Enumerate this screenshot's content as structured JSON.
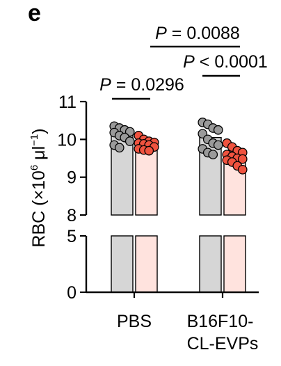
{
  "panel_letter": "e",
  "colors": {
    "pbs_bar": "#d6d6d6",
    "evp_bar": "#ffe3de",
    "group_a_point": "#9a9a9a",
    "group_b_point": "#f0533f",
    "axis": "#000000"
  },
  "chart_data": {
    "type": "bar",
    "ylabel": "RBC (×10⁶ μl⁻¹)",
    "ylabel_parts": {
      "pre": "RBC (×10",
      "sup1": "6",
      "mid": " μl",
      "sup2": "−1",
      "post": ")"
    },
    "y_axis": {
      "broken": true,
      "lower_segment": {
        "range": [
          0,
          5
        ],
        "ticks": [
          "0",
          "5"
        ]
      },
      "upper_segment": {
        "range": [
          8,
          11
        ],
        "ticks": [
          "8",
          "9",
          "10",
          "11"
        ]
      }
    },
    "categories": [
      "PBS",
      "B16F10-\nCL-EVPs"
    ],
    "category_lines": [
      [
        "PBS"
      ],
      [
        "B16F10-",
        "CL-EVPs"
      ]
    ],
    "series": [
      {
        "values": [
          10.15,
          10.05
        ],
        "points": [
          [
            10.35,
            10.3,
            10.25,
            10.2,
            10.18,
            10.1,
            10.05,
            9.95,
            9.85,
            9.78
          ],
          [
            10.45,
            10.4,
            10.3,
            10.25,
            10.15,
            10.0,
            9.9,
            9.85,
            9.75,
            9.65,
            9.6
          ]
        ]
      },
      {
        "values": [
          9.85,
          9.55
        ],
        "points": [
          [
            10.1,
            10.0,
            9.95,
            9.92,
            9.9,
            9.88,
            9.85,
            9.8,
            9.75,
            9.72,
            9.7
          ],
          [
            9.9,
            9.8,
            9.7,
            9.65,
            9.6,
            9.55,
            9.5,
            9.48,
            9.45,
            9.4,
            9.3,
            9.2
          ]
        ]
      }
    ],
    "annotations": [
      {
        "italic": "P",
        "text": " = 0.0296"
      },
      {
        "italic": "P",
        "text": " < 0.0001"
      },
      {
        "italic": "P",
        "text": " = 0.0088"
      }
    ]
  }
}
